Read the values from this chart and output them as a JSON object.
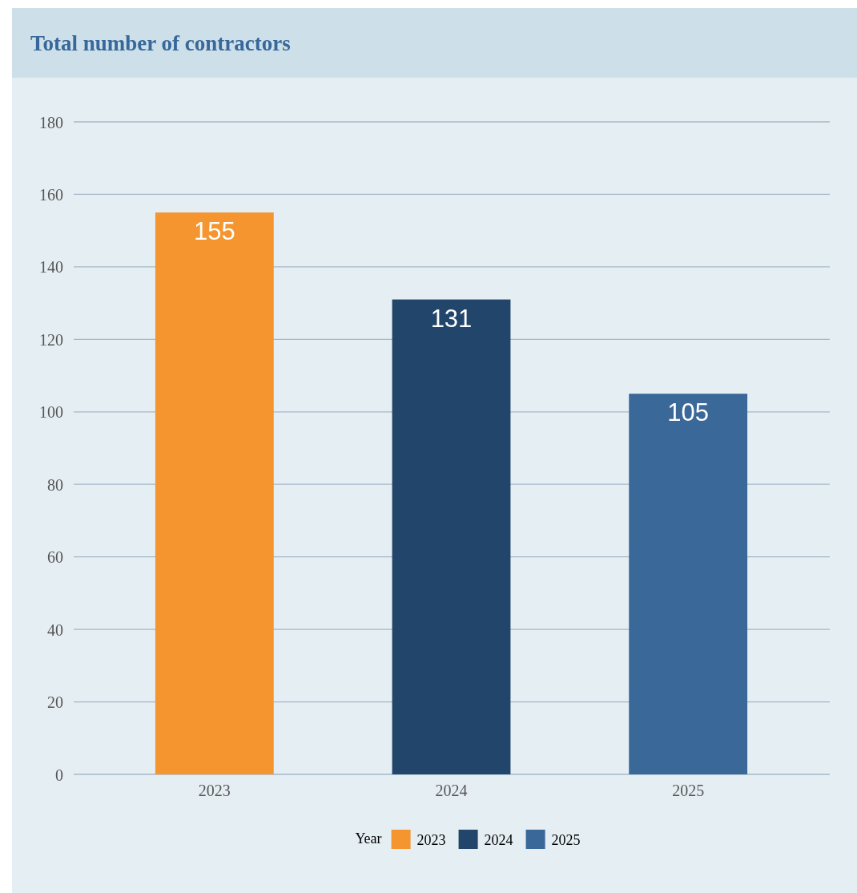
{
  "chart_data": {
    "type": "bar",
    "title": "Total number of contractors",
    "legend_title": "Year",
    "categories": [
      "2023",
      "2024",
      "2025"
    ],
    "series": [
      {
        "name": "2023",
        "color": "#f5952f",
        "values": [
          155,
          null,
          null
        ]
      },
      {
        "name": "2024",
        "color": "#21456b",
        "values": [
          null,
          131,
          null
        ]
      },
      {
        "name": "2025",
        "color": "#3a6899",
        "values": [
          null,
          null,
          105
        ]
      }
    ],
    "ylim": [
      0,
      180
    ],
    "yticks": [
      0,
      20,
      40,
      60,
      80,
      100,
      120,
      140,
      160,
      180
    ],
    "grid": "y",
    "data_labels": true,
    "legend": "bottom"
  }
}
